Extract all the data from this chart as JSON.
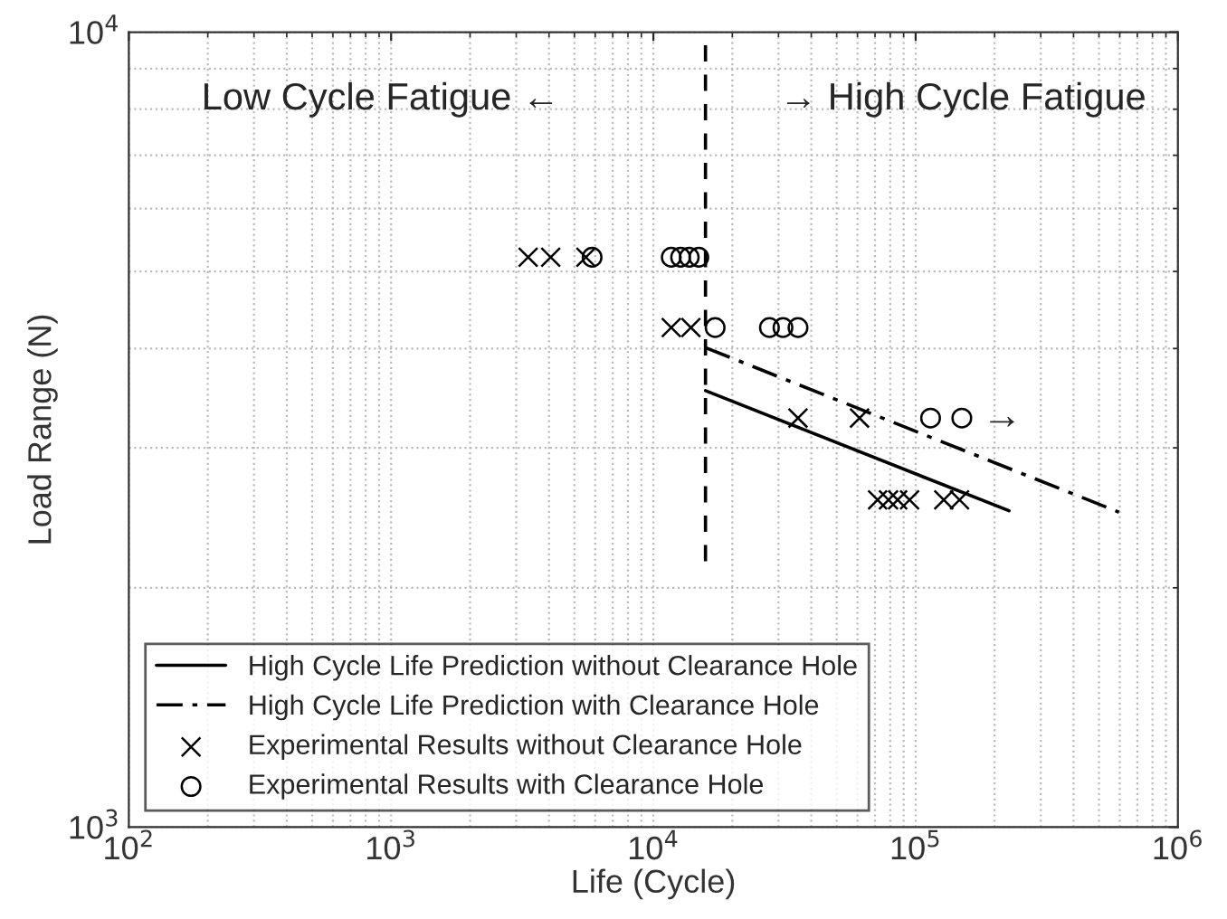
{
  "chart_data": {
    "type": "scatter",
    "xlabel": "Life (Cycle)",
    "ylabel": "Load Range (N)",
    "log": "xy",
    "xlim": [
      100,
      1000000
    ],
    "ylim": [
      1000,
      10000
    ],
    "xticks": [
      {
        "value": 100,
        "label": "10$^{2}$"
      },
      {
        "value": 1000,
        "label": "10$^{3}$"
      },
      {
        "value": 10000,
        "label": "10$^{4}$"
      },
      {
        "value": 100000,
        "label": "10$^{5}$"
      },
      {
        "value": 1000000,
        "label": "10$^{6}$"
      }
    ],
    "yticks": [
      {
        "value": 1000,
        "label": "10$^{3}$"
      },
      {
        "value": 10000,
        "label": "10$^{4}$"
      }
    ],
    "grid": true,
    "legend": "bottom left",
    "series": [
      {
        "name": "High Cycle Life Prediction without Clearance Hole",
        "type": "line",
        "line_style": "solid",
        "marker": "none",
        "color": "#000000",
        "x": [
          15800,
          227000
        ],
        "values": [
          3540,
          2500
        ]
      },
      {
        "name": "High Cycle Life Prediction with Clearance Hole",
        "type": "line",
        "line_style": "dashdot",
        "marker": "none",
        "color": "#000000",
        "x": [
          15800,
          596000
        ],
        "values": [
          4010,
          2490
        ]
      },
      {
        "name": "Experimental Results without Clearance Hole",
        "marker": "cross",
        "color": "#000000",
        "x": [
          3330,
          4060,
          5530,
          11700,
          13900,
          35600,
          61100,
          71600,
          78800,
          85400,
          94800,
          128000,
          147000
        ],
        "values": [
          5210,
          5210,
          5210,
          4250,
          4250,
          3270,
          3270,
          2580,
          2580,
          2580,
          2580,
          2580,
          2580
        ]
      },
      {
        "name": "Experimental Results with Clearance Hole",
        "marker": "circle",
        "color": "#000000",
        "x": [
          5840,
          11700,
          12700,
          13700,
          14900,
          17200,
          27700,
          31200,
          35600,
          114000,
          150000
        ],
        "values": [
          5210,
          5210,
          5210,
          5210,
          5210,
          4250,
          4250,
          4250,
          4250,
          3270,
          3270
        ]
      },
      {
        "type": "line",
        "line_style": "dashed",
        "marker": "none",
        "color": "#000000",
        "x": [
          15800,
          15800
        ],
        "values": [
          2160,
          10000
        ]
      }
    ],
    "annotations": [
      "Low Cycle Fatigue ←",
      "→ High Cycle Fatigue",
      {
        "text": "→",
        "x": 150000,
        "y": 3270
      }
    ]
  }
}
